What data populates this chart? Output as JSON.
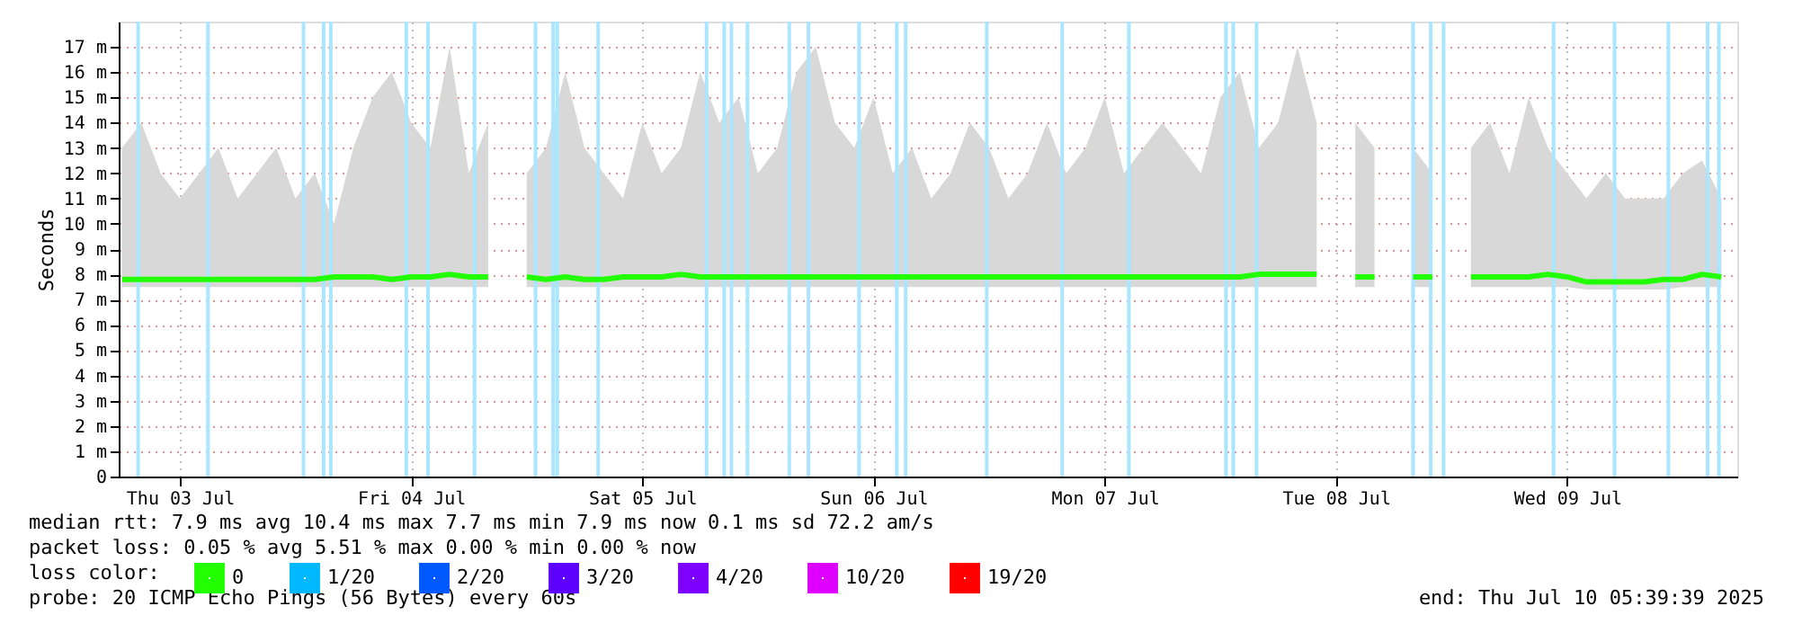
{
  "chart_data": {
    "type": "line",
    "ylabel": "Seconds",
    "legend_title": "loss color:",
    "legend": "bottom left",
    "grid": true,
    "line_style": "solid",
    "xlim": [
      "2025-07-03T05:39",
      "2025-07-10T05:39"
    ],
    "xticks": [
      {
        "value": "2025-07-03T12:00",
        "label": "Thu 03 Jul"
      },
      {
        "value": "2025-07-04T12:00",
        "label": "Fri 04 Jul"
      },
      {
        "value": "2025-07-05T12:00",
        "label": "Sat 05 Jul"
      },
      {
        "value": "2025-07-06T12:00",
        "label": "Sun 06 Jul"
      },
      {
        "value": "2025-07-07T12:00",
        "label": "Mon 07 Jul"
      },
      {
        "value": "2025-07-08T12:00",
        "label": "Tue 08 Jul"
      },
      {
        "value": "2025-07-09T12:00",
        "label": "Wed 09 Jul"
      }
    ],
    "ylim": [
      0,
      18
    ],
    "yticks": [
      0,
      {
        "value": 1,
        "label": "1 m"
      },
      {
        "value": 2,
        "label": "2 m"
      },
      {
        "value": 3,
        "label": "3 m"
      },
      {
        "value": 4,
        "label": "4 m"
      },
      {
        "value": 5,
        "label": "5 m"
      },
      {
        "value": 6,
        "label": "6 m"
      },
      {
        "value": 7,
        "label": "7 m"
      },
      {
        "value": 8,
        "label": "8 m"
      },
      {
        "value": 9,
        "label": "9 m"
      },
      {
        "value": 10,
        "label": "10 m"
      },
      {
        "value": 11,
        "label": "11 m"
      },
      {
        "value": 12,
        "label": "12 m"
      },
      {
        "value": 13,
        "label": "13 m"
      },
      {
        "value": 14,
        "label": "14 m"
      },
      {
        "value": 15,
        "label": "15 m"
      },
      {
        "value": 16,
        "label": "16 m"
      },
      {
        "value": 17,
        "label": "17 m"
      }
    ],
    "x": [
      "2025-07-03T06:00",
      "2025-07-03T08:00",
      "2025-07-03T10:00",
      "2025-07-03T12:00",
      "2025-07-03T14:00",
      "2025-07-03T16:00",
      "2025-07-03T18:00",
      "2025-07-03T20:00",
      "2025-07-03T22:00",
      "2025-07-04T00:00",
      "2025-07-04T02:00",
      "2025-07-04T04:00",
      "2025-07-04T06:00",
      "2025-07-04T08:00",
      "2025-07-04T10:00",
      "2025-07-04T12:00",
      "2025-07-04T14:00",
      "2025-07-04T16:00",
      "2025-07-04T18:00",
      "2025-07-04T20:00",
      "2025-07-04T22:00",
      "2025-07-05T00:00",
      "2025-07-05T02:00",
      "2025-07-05T04:00",
      "2025-07-05T06:00",
      "2025-07-05T08:00",
      "2025-07-05T10:00",
      "2025-07-05T12:00",
      "2025-07-05T14:00",
      "2025-07-05T16:00",
      "2025-07-05T18:00",
      "2025-07-05T20:00",
      "2025-07-05T22:00",
      "2025-07-06T00:00",
      "2025-07-06T02:00",
      "2025-07-06T04:00",
      "2025-07-06T06:00",
      "2025-07-06T08:00",
      "2025-07-06T10:00",
      "2025-07-06T12:00",
      "2025-07-06T14:00",
      "2025-07-06T16:00",
      "2025-07-06T18:00",
      "2025-07-06T20:00",
      "2025-07-06T22:00",
      "2025-07-07T00:00",
      "2025-07-07T02:00",
      "2025-07-07T04:00",
      "2025-07-07T06:00",
      "2025-07-07T08:00",
      "2025-07-07T10:00",
      "2025-07-07T12:00",
      "2025-07-07T14:00",
      "2025-07-07T16:00",
      "2025-07-07T18:00",
      "2025-07-07T20:00",
      "2025-07-07T22:00",
      "2025-07-08T00:00",
      "2025-07-08T02:00",
      "2025-07-08T04:00",
      "2025-07-08T06:00",
      "2025-07-08T08:00",
      "2025-07-08T10:00",
      "2025-07-08T12:00",
      "2025-07-08T14:00",
      "2025-07-08T16:00",
      "2025-07-08T18:00",
      "2025-07-08T20:00",
      "2025-07-08T22:00",
      "2025-07-09T00:00",
      "2025-07-09T02:00",
      "2025-07-09T04:00",
      "2025-07-09T06:00",
      "2025-07-09T08:00",
      "2025-07-09T10:00",
      "2025-07-09T12:00",
      "2025-07-09T14:00",
      "2025-07-09T16:00",
      "2025-07-09T18:00",
      "2025-07-09T20:00",
      "2025-07-09T22:00",
      "2025-07-10T00:00",
      "2025-07-10T02:00",
      "2025-07-10T04:00"
    ],
    "series": [
      {
        "name": "0",
        "type": "line",
        "color": "#22ff00",
        "values": [
          7.8,
          7.8,
          7.8,
          7.8,
          7.8,
          7.8,
          7.8,
          7.8,
          7.8,
          7.8,
          7.8,
          7.9,
          7.9,
          7.9,
          7.8,
          7.9,
          7.9,
          8.0,
          7.9,
          7.9,
          null,
          7.9,
          7.8,
          7.9,
          7.8,
          7.8,
          7.9,
          7.9,
          7.9,
          8.0,
          7.9,
          7.9,
          7.9,
          7.9,
          7.9,
          7.9,
          7.9,
          7.9,
          7.9,
          7.9,
          7.9,
          7.9,
          7.9,
          7.9,
          7.9,
          7.9,
          7.9,
          7.9,
          7.9,
          7.9,
          7.9,
          7.9,
          7.9,
          7.9,
          7.9,
          7.9,
          7.9,
          7.9,
          7.9,
          8.0,
          8.0,
          8.0,
          8.0,
          null,
          7.9,
          7.9,
          null,
          7.9,
          7.9,
          null,
          7.9,
          7.9,
          7.9,
          7.9,
          8.0,
          7.9,
          7.7,
          7.7,
          7.7,
          7.7,
          7.8,
          7.8,
          8.0,
          7.9
        ],
        "lower": [
          7.5,
          7.5,
          7.5,
          7.5,
          7.5,
          7.5,
          7.5,
          7.5,
          7.5,
          7.5,
          7.5,
          7.5,
          7.5,
          7.5,
          7.5,
          7.5,
          7.5,
          7.5,
          7.5,
          7.5,
          null,
          7.5,
          7.5,
          7.5,
          7.5,
          7.5,
          7.5,
          7.5,
          7.5,
          7.5,
          7.5,
          7.5,
          7.5,
          7.5,
          7.5,
          7.5,
          7.5,
          7.5,
          7.5,
          7.5,
          7.5,
          7.5,
          7.5,
          7.5,
          7.5,
          7.5,
          7.5,
          7.5,
          7.5,
          7.5,
          7.5,
          7.5,
          7.5,
          7.5,
          7.5,
          7.5,
          7.5,
          7.5,
          7.5,
          7.5,
          7.5,
          7.5,
          7.5,
          null,
          7.5,
          7.5,
          null,
          7.5,
          7.5,
          null,
          7.5,
          7.5,
          7.5,
          7.5,
          7.5,
          7.5,
          7.4,
          7.4,
          7.4,
          7.4,
          7.4,
          7.5,
          7.5,
          7.5
        ],
        "upper": [
          13,
          14,
          12,
          11,
          12,
          13,
          11,
          12,
          13,
          11,
          12,
          10,
          13,
          15,
          16,
          14,
          13,
          17,
          12,
          14,
          null,
          12,
          13,
          16,
          13,
          12,
          11,
          14,
          12,
          13,
          16,
          14,
          15,
          12,
          13,
          16,
          17,
          14,
          13,
          15,
          12,
          13,
          11,
          12,
          14,
          13,
          11,
          12,
          14,
          12,
          13,
          15,
          12,
          13,
          14,
          13,
          12,
          15,
          16,
          13,
          14,
          17,
          14,
          null,
          14,
          13,
          null,
          13,
          12,
          null,
          13,
          14,
          12,
          15,
          13,
          12,
          11,
          12,
          11,
          11,
          11,
          12,
          12.5,
          11
        ]
      },
      {
        "name": "1/20",
        "type": "line",
        "color": "#00b8ff",
        "values": [
          null,
          null,
          null,
          null,
          null,
          null,
          null,
          null,
          null,
          null,
          null,
          null,
          null,
          null,
          null,
          null,
          null,
          null,
          null,
          null,
          null,
          null,
          null,
          null,
          null,
          null,
          null,
          null,
          null,
          null,
          null,
          null,
          null,
          null,
          null,
          null,
          null,
          null,
          null,
          null,
          null,
          null,
          null,
          null,
          null,
          null,
          null,
          null,
          null,
          null,
          null,
          null,
          null,
          null,
          null,
          null,
          null,
          null,
          null,
          null,
          null,
          null,
          null,
          null,
          null,
          null,
          null,
          null,
          null,
          null,
          null,
          null,
          null,
          null,
          null,
          null,
          null,
          null,
          null,
          null,
          null,
          null,
          null,
          null
        ]
      },
      {
        "name": "2/20",
        "type": "line",
        "color": "#0059ff",
        "values": [
          null,
          null,
          null,
          null,
          null,
          null,
          null,
          null,
          null,
          null,
          null,
          null,
          null,
          null,
          null,
          null,
          null,
          null,
          null,
          null,
          null,
          null,
          null,
          null,
          null,
          null,
          null,
          null,
          null,
          null,
          null,
          null,
          null,
          null,
          null,
          null,
          null,
          null,
          null,
          null,
          null,
          null,
          null,
          null,
          null,
          null,
          null,
          null,
          null,
          null,
          null,
          null,
          null,
          null,
          null,
          null,
          null,
          null,
          null,
          null,
          null,
          null,
          null,
          null,
          null,
          null,
          null,
          null,
          null,
          null,
          null,
          null,
          null,
          null,
          null,
          null,
          null,
          null,
          null,
          null,
          null,
          null,
          null,
          null
        ]
      },
      {
        "name": "3/20",
        "type": "line",
        "color": "#5e00ff",
        "values": [
          null,
          null,
          null,
          null,
          null,
          null,
          null,
          null,
          null,
          null,
          null,
          null,
          null,
          null,
          null,
          null,
          null,
          null,
          null,
          null,
          null,
          null,
          null,
          null,
          null,
          null,
          null,
          null,
          null,
          null,
          null,
          null,
          null,
          null,
          null,
          null,
          null,
          null,
          null,
          null,
          null,
          null,
          null,
          null,
          null,
          null,
          null,
          null,
          null,
          null,
          null,
          null,
          null,
          null,
          null,
          null,
          null,
          null,
          null,
          null,
          null,
          null,
          null,
          null,
          null,
          null,
          null,
          null,
          null,
          null,
          null,
          null,
          null,
          null,
          null,
          null,
          null,
          null,
          null,
          null,
          null,
          null,
          null,
          null
        ]
      },
      {
        "name": "4/20",
        "type": "line",
        "color": "#7e00ff",
        "values": [
          null,
          null,
          null,
          null,
          null,
          null,
          null,
          null,
          null,
          null,
          null,
          null,
          null,
          null,
          null,
          null,
          null,
          null,
          null,
          null,
          null,
          null,
          null,
          null,
          null,
          null,
          null,
          null,
          null,
          null,
          null,
          null,
          null,
          null,
          null,
          null,
          null,
          null,
          null,
          null,
          null,
          null,
          null,
          null,
          null,
          null,
          null,
          null,
          null,
          null,
          null,
          null,
          null,
          null,
          null,
          null,
          null,
          null,
          null,
          null,
          null,
          null,
          null,
          null,
          null,
          null,
          null,
          null,
          null,
          null,
          null,
          null,
          null,
          null,
          null,
          null,
          null,
          null,
          null,
          null,
          null,
          null,
          null,
          null
        ]
      },
      {
        "name": "10/20",
        "type": "line",
        "color": "#dd00ff",
        "values": [
          null,
          null,
          null,
          null,
          null,
          null,
          null,
          null,
          null,
          null,
          null,
          null,
          null,
          null,
          null,
          null,
          null,
          null,
          null,
          null,
          null,
          null,
          null,
          null,
          null,
          null,
          null,
          null,
          null,
          null,
          null,
          null,
          null,
          null,
          null,
          null,
          null,
          null,
          null,
          null,
          null,
          null,
          null,
          null,
          null,
          null,
          null,
          null,
          null,
          null,
          null,
          null,
          null,
          null,
          null,
          null,
          null,
          null,
          null,
          null,
          null,
          null,
          null,
          null,
          null,
          null,
          null,
          null,
          null,
          null,
          null,
          null,
          null,
          null,
          null,
          null,
          null,
          null,
          null,
          null,
          null,
          null,
          null,
          null
        ]
      },
      {
        "name": "19/20",
        "type": "line",
        "color": "#ff0000",
        "values": [
          null,
          null,
          null,
          null,
          null,
          null,
          null,
          null,
          null,
          null,
          null,
          null,
          null,
          null,
          null,
          null,
          null,
          null,
          null,
          null,
          null,
          null,
          null,
          null,
          null,
          null,
          null,
          null,
          null,
          null,
          null,
          null,
          null,
          null,
          null,
          null,
          null,
          null,
          null,
          null,
          null,
          null,
          null,
          null,
          null,
          null,
          null,
          null,
          null,
          null,
          null,
          null,
          null,
          null,
          null,
          null,
          null,
          null,
          null,
          null,
          null,
          null,
          null,
          null,
          null,
          null,
          null,
          null,
          null,
          null,
          null,
          null,
          null,
          null,
          null,
          null,
          null,
          null,
          null,
          null,
          null,
          null,
          null,
          null
        ]
      }
    ],
    "ref_lines": [
      {
        "axis": "x",
        "value": "2025-07-03T07:40",
        "color": "#aae6ff"
      },
      {
        "axis": "x",
        "value": "2025-07-03T14:55",
        "color": "#aae6ff"
      },
      {
        "axis": "x",
        "value": "2025-07-04T00:50",
        "color": "#aae6ff"
      },
      {
        "axis": "x",
        "value": "2025-07-04T02:55",
        "color": "#aae6ff"
      },
      {
        "axis": "x",
        "value": "2025-07-04T03:40",
        "color": "#aae6ff"
      },
      {
        "axis": "x",
        "value": "2025-07-04T11:30",
        "color": "#aae6ff"
      },
      {
        "axis": "x",
        "value": "2025-07-04T13:45",
        "color": "#aae6ff"
      },
      {
        "axis": "x",
        "value": "2025-07-04T18:35",
        "color": "#aae6ff"
      },
      {
        "axis": "x",
        "value": "2025-07-05T00:55",
        "color": "#aae6ff"
      },
      {
        "axis": "x",
        "value": "2025-07-05T02:45",
        "color": "#aae6ff"
      },
      {
        "axis": "x",
        "value": "2025-07-05T03:10",
        "color": "#aae6ff"
      },
      {
        "axis": "x",
        "value": "2025-07-05T07:25",
        "color": "#aae6ff"
      },
      {
        "axis": "x",
        "value": "2025-07-05T18:40",
        "color": "#aae6ff"
      },
      {
        "axis": "x",
        "value": "2025-07-05T20:30",
        "color": "#aae6ff"
      },
      {
        "axis": "x",
        "value": "2025-07-05T21:15",
        "color": "#aae6ff"
      },
      {
        "axis": "x",
        "value": "2025-07-05T22:55",
        "color": "#aae6ff"
      },
      {
        "axis": "x",
        "value": "2025-07-06T03:15",
        "color": "#aae6ff"
      },
      {
        "axis": "x",
        "value": "2025-07-06T05:15",
        "color": "#aae6ff"
      },
      {
        "axis": "x",
        "value": "2025-07-06T10:30",
        "color": "#aae6ff"
      },
      {
        "axis": "x",
        "value": "2025-07-06T14:25",
        "color": "#aae6ff"
      },
      {
        "axis": "x",
        "value": "2025-07-06T15:20",
        "color": "#aae6ff"
      },
      {
        "axis": "x",
        "value": "2025-07-06T23:45",
        "color": "#aae6ff"
      },
      {
        "axis": "x",
        "value": "2025-07-07T07:35",
        "color": "#aae6ff"
      },
      {
        "axis": "x",
        "value": "2025-07-07T14:30",
        "color": "#aae6ff"
      },
      {
        "axis": "x",
        "value": "2025-07-08T00:35",
        "color": "#aae6ff"
      },
      {
        "axis": "x",
        "value": "2025-07-08T01:20",
        "color": "#aae6ff"
      },
      {
        "axis": "x",
        "value": "2025-07-08T03:45",
        "color": "#aae6ff"
      },
      {
        "axis": "x",
        "value": "2025-07-08T20:00",
        "color": "#aae6ff"
      },
      {
        "axis": "x",
        "value": "2025-07-08T21:50",
        "color": "#aae6ff"
      },
      {
        "axis": "x",
        "value": "2025-07-08T23:10",
        "color": "#aae6ff"
      },
      {
        "axis": "x",
        "value": "2025-07-09T10:35",
        "color": "#aae6ff"
      },
      {
        "axis": "x",
        "value": "2025-07-09T16:55",
        "color": "#aae6ff"
      },
      {
        "axis": "x",
        "value": "2025-07-09T22:30",
        "color": "#aae6ff"
      },
      {
        "axis": "x",
        "value": "2025-07-10T02:35",
        "color": "#aae6ff"
      },
      {
        "axis": "x",
        "value": "2025-07-10T03:45",
        "color": "#aae6ff"
      }
    ],
    "annotations": [
      "median rtt:  7.9 ms avg  10.4 ms max  7.7 ms min  7.9 ms now  0.1 ms sd  72.2   am/s",
      "packet loss: 0.05 % avg  5.51 % max  0.00 % min  0.00 % now",
      "probe:       20 ICMP Echo Pings (56 Bytes) every 60s",
      "end: Thu Jul 10 05:39:39 2025"
    ]
  }
}
